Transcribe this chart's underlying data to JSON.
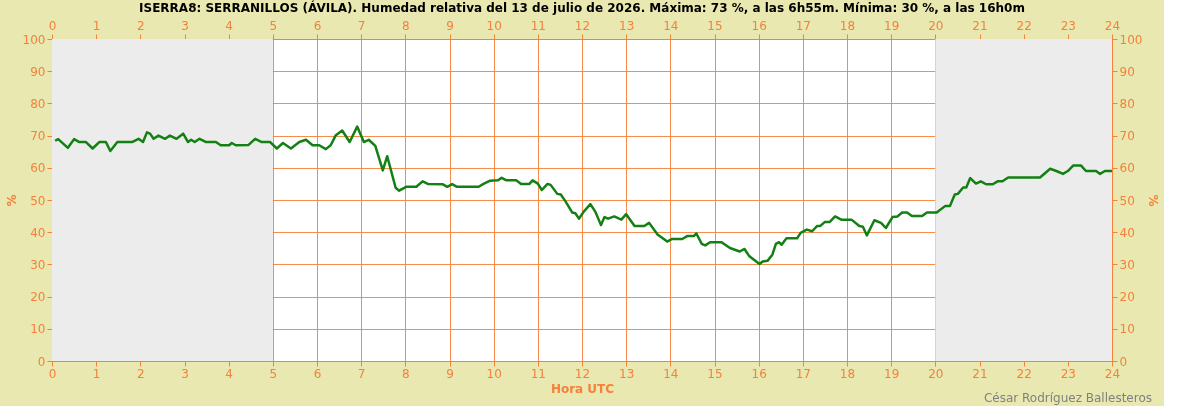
{
  "chart_data": {
    "type": "line",
    "title": "ISERRA8: SERRANILLOS (ÁVILA). Humedad relativa del 13 de julio de 2026. Máxima: 73 %, a las 6h55m. Mínima: 30 %, a las 16h0m",
    "xlabel": "Hora UTC",
    "ylabel": "%",
    "y2label": "%",
    "annotations": [
      "César Rodríguez Ballesteros"
    ],
    "xlim": [
      0,
      24
    ],
    "xticks": [
      0,
      1,
      2,
      3,
      4,
      5,
      6,
      7,
      8,
      9,
      10,
      11,
      12,
      13,
      14,
      15,
      16,
      17,
      18,
      19,
      20,
      21,
      22,
      23,
      24
    ],
    "x2lim": [
      0,
      24
    ],
    "x2ticks": [
      0,
      1,
      2,
      3,
      4,
      5,
      6,
      7,
      8,
      9,
      10,
      11,
      12,
      13,
      14,
      15,
      16,
      17,
      18,
      19,
      20,
      21,
      22,
      23,
      24
    ],
    "ylim": [
      0,
      100
    ],
    "yticks": [
      0,
      10,
      20,
      30,
      40,
      50,
      60,
      70,
      80,
      90,
      100
    ],
    "y2lim": [
      0,
      100
    ],
    "y2ticks": [
      0,
      10,
      20,
      30,
      40,
      50,
      60,
      70,
      80,
      90,
      100
    ],
    "grid": true,
    "marker": "none",
    "line_style": "solid",
    "bands": [
      {
        "axis": "x",
        "from": 0,
        "to": 5,
        "color": "#ececec"
      },
      {
        "axis": "x",
        "from": 20,
        "to": 24,
        "color": "#ececec"
      }
    ],
    "series": [
      {
        "color": "#138013",
        "x": [
          0.07,
          0.14,
          0.36,
          0.5,
          0.62,
          0.77,
          0.92,
          1.07,
          1.22,
          1.32,
          1.48,
          1.81,
          1.96,
          2.06,
          2.15,
          2.22,
          2.3,
          2.41,
          2.56,
          2.67,
          2.82,
          2.97,
          3.08,
          3.15,
          3.23,
          3.34,
          3.49,
          3.71,
          3.82,
          4.01,
          4.07,
          4.16,
          4.45,
          4.6,
          4.75,
          4.94,
          5.09,
          5.23,
          5.41,
          5.6,
          5.75,
          5.9,
          6.05,
          6.2,
          6.31,
          6.42,
          6.57,
          6.74,
          6.91,
          7.06,
          7.17,
          7.32,
          7.49,
          7.59,
          7.78,
          7.86,
          8.02,
          8.25,
          8.39,
          8.51,
          8.84,
          8.95,
          9.06,
          9.17,
          9.66,
          9.77,
          9.92,
          10.1,
          10.18,
          10.29,
          10.51,
          10.62,
          10.81,
          10.88,
          11.0,
          11.09,
          11.22,
          11.29,
          11.44,
          11.52,
          11.63,
          11.78,
          11.85,
          11.93,
          12.04,
          12.19,
          12.3,
          12.43,
          12.51,
          12.59,
          12.73,
          12.89,
          13.0,
          13.19,
          13.41,
          13.52,
          13.71,
          13.93,
          14.04,
          14.27,
          14.38,
          14.53,
          14.59,
          14.71,
          14.79,
          14.9,
          15.16,
          15.35,
          15.57,
          15.68,
          15.79,
          16.02,
          16.09,
          16.2,
          16.31,
          16.39,
          16.46,
          16.52,
          16.63,
          16.87,
          16.95,
          17.09,
          17.21,
          17.32,
          17.39,
          17.5,
          17.61,
          17.73,
          17.87,
          18.1,
          18.28,
          18.36,
          18.45,
          18.62,
          18.77,
          18.88,
          19.03,
          19.14,
          19.25,
          19.36,
          19.47,
          19.7,
          19.81,
          20.03,
          20.22,
          20.33,
          20.44,
          20.51,
          20.63,
          20.7,
          20.79,
          20.92,
          21.03,
          21.15,
          21.3,
          21.41,
          21.52,
          21.65,
          22.37,
          22.6,
          22.74,
          22.89,
          23.0,
          23.12,
          23.3,
          23.41,
          23.64,
          23.73,
          23.84,
          24.0
        ],
        "values": [
          68.4,
          68.9,
          66.2,
          68.9,
          68,
          68,
          66,
          68,
          68,
          65.2,
          68,
          68,
          69,
          68,
          71,
          70.6,
          69,
          70,
          69,
          70,
          69,
          70.6,
          68,
          68.7,
          68,
          69,
          68,
          68,
          67,
          67,
          67.7,
          67,
          67.1,
          69,
          68,
          68,
          66,
          67.7,
          66,
          68,
          68.7,
          67,
          67,
          65.8,
          67,
          70,
          71.6,
          68,
          72.8,
          68,
          68.7,
          66.8,
          59.2,
          63.6,
          53.8,
          52.9,
          54.1,
          54.1,
          55.8,
          55,
          54.9,
          54.1,
          54.9,
          54.1,
          54.1,
          55,
          56,
          56.1,
          56.9,
          56.1,
          56.1,
          55,
          55,
          56.1,
          55.1,
          53.1,
          55,
          54.7,
          51.9,
          51.7,
          49.5,
          46.1,
          45.9,
          44.2,
          46.4,
          48.7,
          46.4,
          42.2,
          44.7,
          44.2,
          44.9,
          43.9,
          45.6,
          41.9,
          41.9,
          42.9,
          39.3,
          37.1,
          37.9,
          37.9,
          38.8,
          38.8,
          39.6,
          36.4,
          35.9,
          36.9,
          36.9,
          35.1,
          34,
          34.8,
          32.5,
          30.1,
          30.9,
          31.1,
          33,
          36.4,
          36.9,
          36.1,
          38.1,
          38.1,
          39.8,
          40.8,
          40.3,
          41.9,
          41.9,
          43.2,
          43.2,
          44.9,
          43.9,
          43.9,
          41.9,
          41.7,
          39,
          43.7,
          42.9,
          41.3,
          44.7,
          44.9,
          46.1,
          46.1,
          45,
          45,
          46.1,
          46.1,
          48.1,
          48.1,
          51.7,
          51.9,
          53.9,
          53.9,
          56.8,
          55.1,
          55.8,
          54.9,
          54.9,
          55.8,
          55.8,
          57,
          57,
          59.7,
          59,
          58.1,
          59,
          60.7,
          60.7,
          59,
          59,
          58.1,
          59,
          59
        ]
      }
    ]
  }
}
